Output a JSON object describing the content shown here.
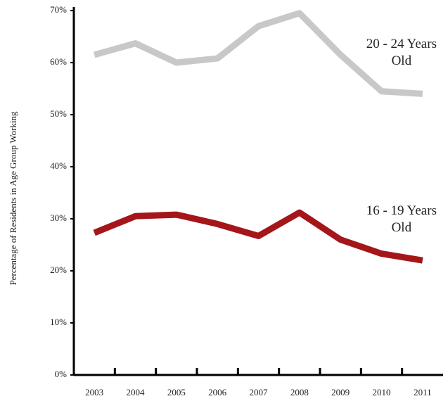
{
  "chart_data": {
    "type": "line",
    "y_label": "Percentage of Residents in Age Group Working",
    "categories": [
      "2003",
      "2004",
      "2005",
      "2006",
      "2007",
      "2008",
      "2009",
      "2010",
      "2011"
    ],
    "series": [
      {
        "name": "20 - 24 Years Old",
        "color": "#c8c8c8",
        "values": [
          61.5,
          63.7,
          60,
          60.8,
          67,
          69.5,
          61.5,
          54.5,
          54
        ]
      },
      {
        "name": "16 - 19 Years Old",
        "color": "#a4161a",
        "values": [
          27.3,
          30.5,
          30.8,
          29,
          26.7,
          31.2,
          26,
          23.3,
          22
        ]
      }
    ],
    "ylim": [
      0,
      70
    ],
    "yticks": [
      {
        "value": 0,
        "label": "0%"
      },
      {
        "value": 10,
        "label": "10%"
      },
      {
        "value": 20,
        "label": "20%"
      },
      {
        "value": 30,
        "label": "30%"
      },
      {
        "value": 40,
        "label": "40%"
      },
      {
        "value": 50,
        "label": "50%"
      },
      {
        "value": 60,
        "label": "60%"
      },
      {
        "value": 70,
        "label": "70%"
      }
    ]
  }
}
